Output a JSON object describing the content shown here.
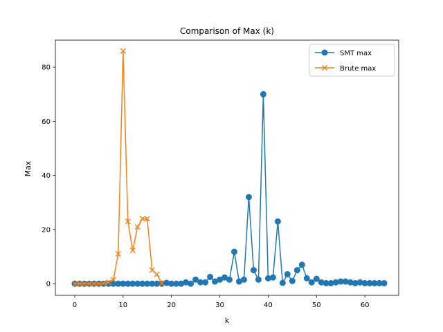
{
  "chart_data": {
    "type": "line",
    "title": "Comparison of Max (k)",
    "xlabel": "k",
    "ylabel": "Max",
    "xlim": [
      -4,
      67
    ],
    "ylim": [
      -4.3,
      90
    ],
    "xticks": [
      0,
      10,
      20,
      30,
      40,
      50,
      60
    ],
    "yticks": [
      0,
      20,
      40,
      60,
      80
    ],
    "grid": false,
    "legend_position": "top-right",
    "series": [
      {
        "name": "SMT max",
        "color": "#1f77b4",
        "marker": "circle",
        "x": [
          0,
          1,
          2,
          3,
          4,
          5,
          6,
          7,
          8,
          9,
          10,
          11,
          12,
          13,
          14,
          15,
          16,
          17,
          18,
          19,
          20,
          21,
          22,
          23,
          24,
          25,
          26,
          27,
          28,
          29,
          30,
          31,
          32,
          33,
          34,
          35,
          36,
          37,
          38,
          39,
          40,
          41,
          42,
          43,
          44,
          45,
          46,
          47,
          48,
          49,
          50,
          51,
          52,
          53,
          54,
          55,
          56,
          57,
          58,
          59,
          60,
          61,
          62,
          63,
          64
        ],
        "y": [
          0,
          0,
          0,
          0,
          0,
          0,
          0,
          0,
          0,
          0,
          0,
          0,
          0,
          0,
          0,
          0,
          0,
          0,
          0,
          0.3,
          0,
          0,
          0,
          0.5,
          0,
          1.5,
          0.5,
          0.5,
          2.5,
          0.8,
          1.5,
          2.3,
          1.5,
          11.8,
          0.8,
          1.5,
          32,
          5,
          1.5,
          70,
          2,
          2.3,
          23,
          0.3,
          3.5,
          1,
          5,
          7,
          2,
          0.5,
          1.8,
          0.5,
          0.2,
          0.2,
          0.5,
          0.8,
          0.8,
          0.5,
          0.2,
          0.5,
          0.2,
          0.2,
          0.2,
          0.2,
          0.2
        ]
      },
      {
        "name": "Brute max",
        "color": "#ff7f0e",
        "marker": "x",
        "x": [
          0,
          1,
          2,
          3,
          4,
          5,
          6,
          7,
          8,
          9,
          10,
          11,
          12,
          13,
          14,
          15,
          16,
          17,
          18
        ],
        "y": [
          0,
          0,
          0,
          0,
          0,
          0,
          0.2,
          0.5,
          1.5,
          11,
          86,
          23,
          12.3,
          21,
          24,
          24,
          5,
          3.5,
          0.2
        ]
      }
    ]
  }
}
